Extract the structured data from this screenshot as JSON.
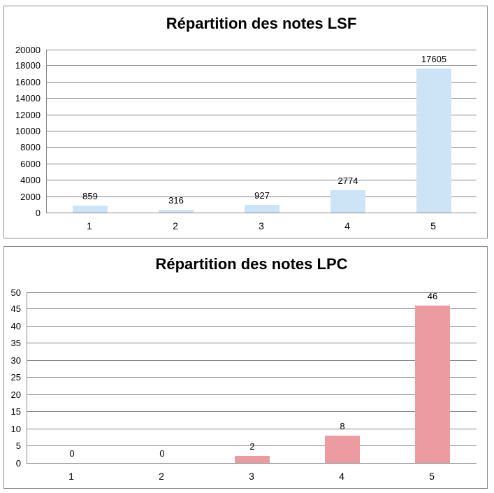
{
  "chart_data": [
    {
      "type": "bar",
      "title": "Répartition des notes LSF",
      "categories": [
        "1",
        "2",
        "3",
        "4",
        "5"
      ],
      "values": [
        859,
        316,
        927,
        2774,
        17605
      ],
      "data_labels": [
        "859",
        "316",
        "927",
        "2774",
        "17605"
      ],
      "xlabel": "",
      "ylabel": "",
      "ylim": [
        0,
        20000
      ],
      "ytick_step": 2000,
      "grid": true,
      "legend_position": "none",
      "bar_color": "#cde3f6",
      "gridline_color": "#878787",
      "title_color": "#000000",
      "label_color": "#000000"
    },
    {
      "type": "bar",
      "title": "Répartition des notes LPC",
      "categories": [
        "1",
        "2",
        "3",
        "4",
        "5"
      ],
      "values": [
        0,
        0,
        2,
        8,
        46
      ],
      "data_labels": [
        "0",
        "0",
        "2",
        "8",
        "46"
      ],
      "xlabel": "",
      "ylabel": "",
      "ylim": [
        0,
        50
      ],
      "ytick_step": 5,
      "grid": true,
      "legend_position": "none",
      "bar_color": "#ec9ba1",
      "gridline_color": "#878787",
      "title_color": "#000000",
      "label_color": "#000000"
    }
  ]
}
